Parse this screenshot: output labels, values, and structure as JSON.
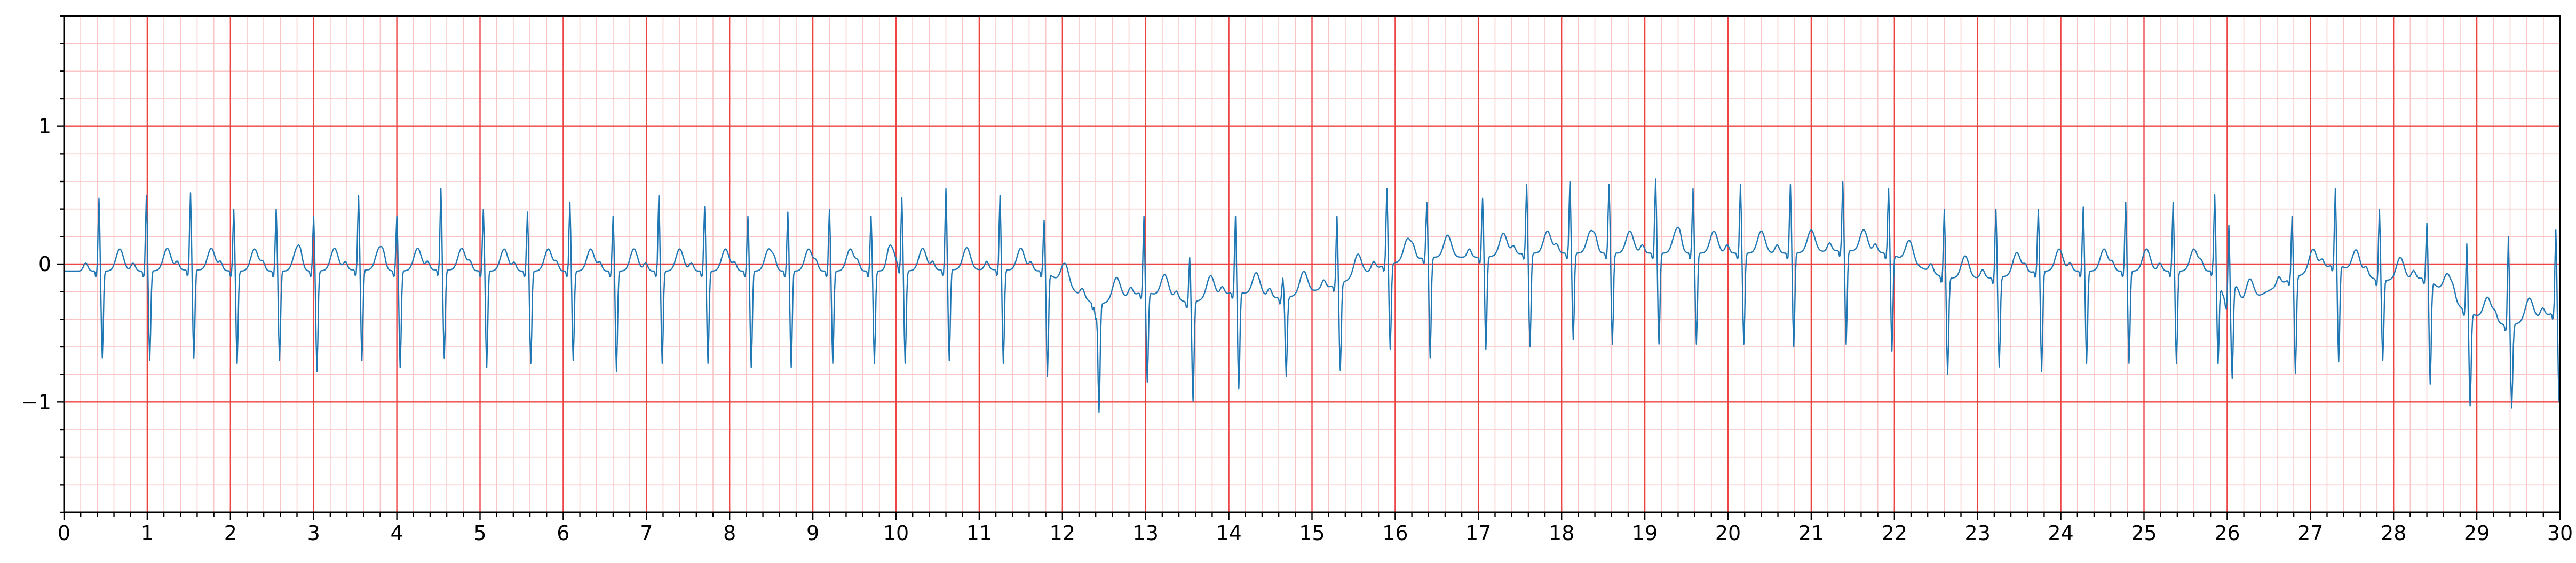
{
  "chart_data": {
    "type": "line",
    "title": "",
    "xlabel": "",
    "ylabel": "",
    "xlim": [
      0,
      30
    ],
    "ylim": [
      -1.8,
      1.8
    ],
    "x_ticks": [
      0,
      1,
      2,
      3,
      4,
      5,
      6,
      7,
      8,
      9,
      10,
      11,
      12,
      13,
      14,
      15,
      16,
      17,
      18,
      19,
      20,
      21,
      22,
      23,
      24,
      25,
      26,
      27,
      28,
      29,
      30
    ],
    "x_tick_labels": [
      "0",
      "1",
      "2",
      "3",
      "4",
      "5",
      "6",
      "7",
      "8",
      "9",
      "10",
      "11",
      "12",
      "13",
      "14",
      "15",
      "16",
      "17",
      "18",
      "19",
      "20",
      "21",
      "22",
      "23",
      "24",
      "25",
      "26",
      "27",
      "28",
      "29",
      "30"
    ],
    "y_ticks": [
      -1,
      0,
      1
    ],
    "y_tick_labels": [
      "−1",
      "0",
      "1"
    ],
    "grid": {
      "major": true,
      "minor": true,
      "major_x_step": 1,
      "major_y_step": 1,
      "minor_x_step": 0.2,
      "minor_y_step": 0.2
    },
    "legend": "none",
    "colors": {
      "trace": "#1f77b4",
      "grid_major": "#ee4444",
      "grid_minor": "#f9c4c4",
      "axis": "#000000",
      "background": "#ffffff"
    },
    "sampling_rate_hz": 100,
    "series": [
      {
        "beats": [
          {
            "t": 0.42,
            "r": 0.48,
            "s": -0.68,
            "b": -0.05
          },
          {
            "t": 0.99,
            "r": 0.5,
            "s": -0.7,
            "b": -0.05
          },
          {
            "t": 1.52,
            "r": 0.52,
            "s": -0.68,
            "b": -0.04
          },
          {
            "t": 2.04,
            "r": 0.4,
            "s": -0.72,
            "b": -0.05
          },
          {
            "t": 2.55,
            "r": 0.4,
            "s": -0.7,
            "b": -0.05
          },
          {
            "t": 3.0,
            "r": 0.35,
            "s": -0.78,
            "b": -0.05
          },
          {
            "t": 3.54,
            "r": 0.5,
            "s": -0.7,
            "b": -0.04
          },
          {
            "t": 4.0,
            "r": 0.35,
            "s": -0.75,
            "b": -0.05
          },
          {
            "t": 4.53,
            "r": 0.55,
            "s": -0.68,
            "b": -0.04
          },
          {
            "t": 5.04,
            "r": 0.4,
            "s": -0.75,
            "b": -0.05
          },
          {
            "t": 5.57,
            "r": 0.38,
            "s": -0.72,
            "b": -0.05
          },
          {
            "t": 6.08,
            "r": 0.45,
            "s": -0.7,
            "b": -0.05
          },
          {
            "t": 6.6,
            "r": 0.35,
            "s": -0.78,
            "b": -0.05
          },
          {
            "t": 7.15,
            "r": 0.5,
            "s": -0.72,
            "b": -0.05
          },
          {
            "t": 7.7,
            "r": 0.42,
            "s": -0.72,
            "b": -0.05
          },
          {
            "t": 8.22,
            "r": 0.35,
            "s": -0.75,
            "b": -0.05
          },
          {
            "t": 8.7,
            "r": 0.38,
            "s": -0.75,
            "b": -0.05
          },
          {
            "t": 9.2,
            "r": 0.4,
            "s": -0.72,
            "b": -0.05
          },
          {
            "t": 9.7,
            "r": 0.35,
            "s": -0.72,
            "b": -0.05
          },
          {
            "t": 10.07,
            "r": 0.48,
            "s": -0.72,
            "b": -0.05
          },
          {
            "t": 10.6,
            "r": 0.55,
            "s": -0.7,
            "b": -0.04
          },
          {
            "t": 11.25,
            "r": 0.5,
            "s": -0.72,
            "b": -0.04
          },
          {
            "t": 11.78,
            "r": 0.32,
            "s": -0.8,
            "b": -0.05
          },
          {
            "t": 12.4,
            "r": -0.4,
            "s": -1.08,
            "b": -0.3
          },
          {
            "t": 12.98,
            "r": 0.35,
            "s": -0.85,
            "b": -0.2
          },
          {
            "t": 13.53,
            "r": 0.05,
            "s": -1.0,
            "b": -0.28
          },
          {
            "t": 14.08,
            "r": 0.35,
            "s": -0.9,
            "b": -0.2
          },
          {
            "t": 14.65,
            "r": -0.1,
            "s": -0.82,
            "b": -0.25
          },
          {
            "t": 15.3,
            "r": 0.35,
            "s": -0.78,
            "b": -0.15
          },
          {
            "t": 15.9,
            "r": 0.55,
            "s": -0.62,
            "b": 0.0
          },
          {
            "t": 16.38,
            "r": 0.45,
            "s": -0.68,
            "b": 0.05
          },
          {
            "t": 17.05,
            "r": 0.48,
            "s": -0.62,
            "b": 0.05
          },
          {
            "t": 17.58,
            "r": 0.58,
            "s": -0.6,
            "b": 0.08
          },
          {
            "t": 18.1,
            "r": 0.6,
            "s": -0.55,
            "b": 0.08
          },
          {
            "t": 18.57,
            "r": 0.58,
            "s": -0.58,
            "b": 0.08
          },
          {
            "t": 19.13,
            "r": 0.62,
            "s": -0.58,
            "b": 0.08
          },
          {
            "t": 19.58,
            "r": 0.55,
            "s": -0.58,
            "b": 0.08
          },
          {
            "t": 20.15,
            "r": 0.58,
            "s": -0.58,
            "b": 0.08
          },
          {
            "t": 20.75,
            "r": 0.58,
            "s": -0.6,
            "b": 0.08
          },
          {
            "t": 21.38,
            "r": 0.6,
            "s": -0.58,
            "b": 0.1
          },
          {
            "t": 21.93,
            "r": 0.55,
            "s": -0.62,
            "b": 0.08
          },
          {
            "t": 22.6,
            "r": 0.4,
            "s": -0.8,
            "b": -0.1
          },
          {
            "t": 23.22,
            "r": 0.4,
            "s": -0.75,
            "b": -0.1
          },
          {
            "t": 23.73,
            "r": 0.4,
            "s": -0.78,
            "b": -0.05
          },
          {
            "t": 24.27,
            "r": 0.42,
            "s": -0.72,
            "b": -0.05
          },
          {
            "t": 24.78,
            "r": 0.45,
            "s": -0.72,
            "b": -0.05
          },
          {
            "t": 25.35,
            "r": 0.45,
            "s": -0.72,
            "b": -0.05
          },
          {
            "t": 25.85,
            "r": 0.45,
            "s": -0.68,
            "b": -0.05
          },
          {
            "t": 26.02,
            "r": 0.25,
            "s": -0.95,
            "b": -0.35
          },
          {
            "t": 26.78,
            "r": 0.35,
            "s": -0.8,
            "b": -0.1
          },
          {
            "t": 27.3,
            "r": 0.55,
            "s": -0.7,
            "b": 0.0
          },
          {
            "t": 27.83,
            "r": 0.4,
            "s": -0.7,
            "b": -0.12
          },
          {
            "t": 28.4,
            "r": 0.3,
            "s": -0.85,
            "b": -0.1
          },
          {
            "t": 28.88,
            "r": 0.15,
            "s": -1.02,
            "b": -0.35
          },
          {
            "t": 29.38,
            "r": 0.2,
            "s": -1.05,
            "b": -0.45
          },
          {
            "t": 29.95,
            "r": 0.25,
            "s": -1.0,
            "b": -0.35
          }
        ]
      }
    ]
  }
}
